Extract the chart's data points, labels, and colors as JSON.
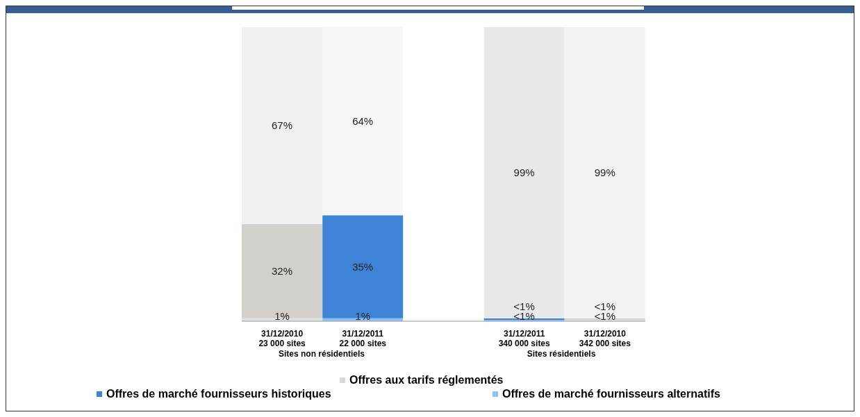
{
  "chart_data": {
    "type": "bar",
    "stacked": true,
    "categories": [
      "31/12/2010\n23 000 sites",
      "31/12/2011\n22 000 sites",
      null,
      "31/12/2011\n340 000 sites",
      "31/12/2010\n342 000 sites"
    ],
    "series": [
      {
        "name": "Offres de marché fournisseurs alternatifs",
        "color": "#8ec3f5",
        "colors": [
          "#e2e2e2",
          "#8ec3f5",
          null,
          "#8ec3f5",
          "#e2e2e2"
        ],
        "values": [
          1,
          1,
          null,
          0.5,
          0.5
        ],
        "value_labels": [
          "1%",
          "1%",
          null,
          "<1%",
          "<1%"
        ]
      },
      {
        "name": "Offres de marché fournisseurs historiques",
        "color": "#3f83d6",
        "colors": [
          "#d3d0cb",
          "#3f83d6",
          null,
          "#3f83d6",
          "#d3d0cb"
        ],
        "values": [
          32,
          35,
          null,
          0.5,
          0.5
        ],
        "value_labels": [
          "32%",
          "35%",
          null,
          "<1%",
          "<1%"
        ]
      },
      {
        "name": "Offres aux tarifs réglementés",
        "color": "#d9d9d9",
        "colors": [
          "#f0f0f0",
          "#f7f7f7",
          null,
          "#e9e9e9",
          "#f2f2f2"
        ],
        "values": [
          67,
          64,
          null,
          99,
          99
        ],
        "value_labels": [
          "67%",
          "64%",
          null,
          "99%",
          "99%"
        ]
      }
    ],
    "legend": "bottom",
    "annotations": [
      "Sites non résidentiels",
      "Sites résidentiels"
    ]
  }
}
